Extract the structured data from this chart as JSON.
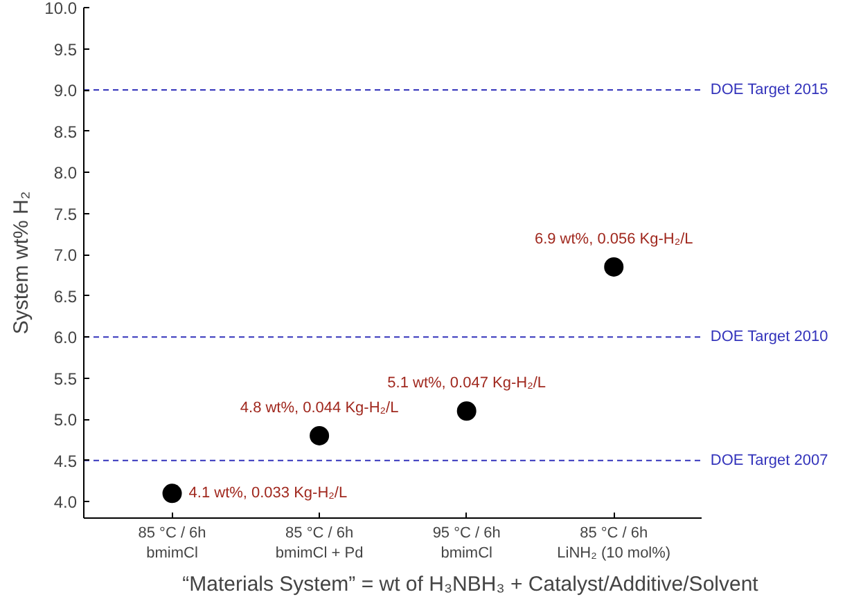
{
  "chart_data": {
    "type": "scatter",
    "xlabel": "“Materials System” = wt of H₃NBH₃ + Catalyst/Additive/Solvent",
    "ylabel": "System wt% H₂",
    "categories": [
      "85 °C / 6h\nbmimCl",
      "85 °C / 6h\nbmimCl + Pd",
      "95 °C / 6h\nbmimCl",
      "85 °C / 6h\nLiNH₂ (10 mol%)"
    ],
    "series": [
      {
        "color": "#000000",
        "values": [
          4.1,
          4.8,
          5.1,
          6.85
        ]
      }
    ],
    "marker": "circle",
    "grid": false,
    "ylim": [
      3.8,
      10.0
    ],
    "yticks": [
      {
        "value": 4,
        "label": "4.0"
      },
      4.5,
      {
        "value": 5,
        "label": "5.0"
      },
      5.5,
      {
        "value": 6,
        "label": "6.0"
      },
      6.5,
      {
        "value": 7,
        "label": "7.0"
      },
      7.5,
      {
        "value": 8,
        "label": "8.0"
      },
      8.5,
      {
        "value": 9,
        "label": "9.0"
      },
      9.5,
      {
        "value": 10,
        "label": "10.0"
      }
    ],
    "ref_lines": [
      {
        "axis": "y",
        "value": 9.0,
        "label": "DOE Target 2015",
        "color": "#3333bb",
        "line_style": "dashed"
      },
      {
        "axis": "y",
        "value": 6.0,
        "label": "DOE Target 2010",
        "color": "#3333bb",
        "line_style": "dashed"
      },
      {
        "axis": "y",
        "value": 4.5,
        "label": "DOE Target 2007",
        "color": "#3333bb",
        "line_style": "dashed"
      }
    ],
    "annotations": [
      {
        "text": "4.1 wt%, 0.033 Kg-H₂/L",
        "x": "85 °C / 6h\nbmimCl",
        "y": 4.1
      },
      {
        "text": "4.8 wt%, 0.044 Kg-H₂/L",
        "x": "85 °C / 6h\nbmimCl + Pd",
        "y": 4.8
      },
      {
        "text": "5.1 wt%, 0.047 Kg-H₂/L",
        "x": "95 °C / 6h\nbmimCl",
        "y": 5.1
      },
      {
        "text": "6.9 wt%, 0.056 Kg-H₂/L",
        "x": "85 °C / 6h\nLiNH₂ (10 mol%)",
        "y": 6.85
      }
    ]
  }
}
